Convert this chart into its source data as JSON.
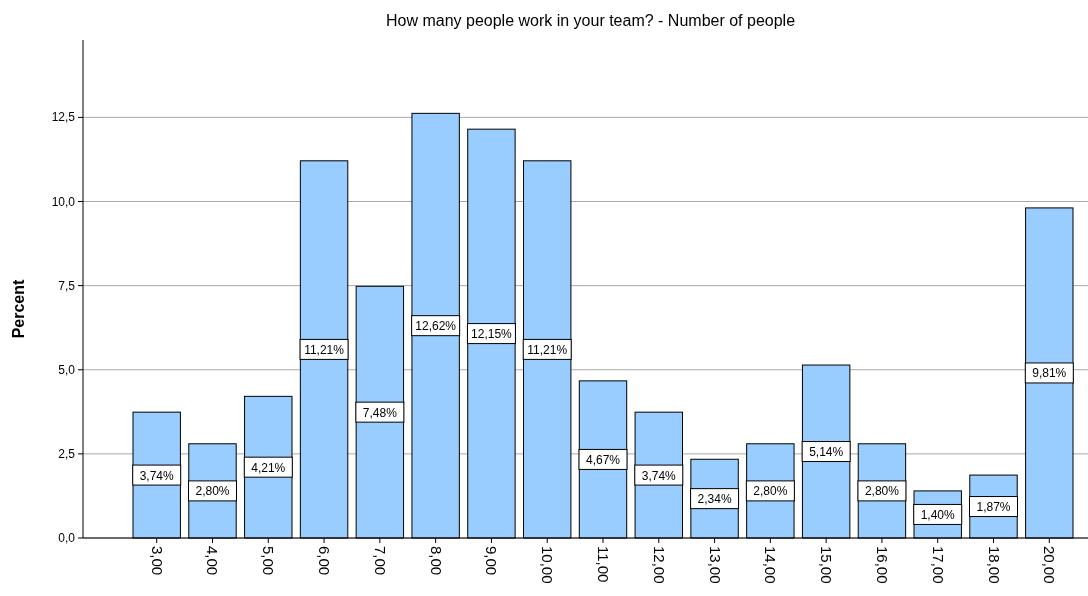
{
  "chart_data": {
    "type": "bar",
    "title": "How many people work in your team? - Number of people",
    "ylabel": "Percent",
    "categories": [
      "3,00",
      "4,00",
      "5,00",
      "6,00",
      "7,00",
      "8,00",
      "9,00",
      "10,00",
      "11,00",
      "12,00",
      "13,00",
      "14,00",
      "15,00",
      "16,00",
      "17,00",
      "18,00",
      "20,00"
    ],
    "values": [
      3.74,
      2.8,
      4.21,
      11.21,
      7.48,
      12.62,
      12.15,
      11.21,
      4.67,
      3.74,
      2.34,
      2.8,
      5.14,
      2.8,
      1.4,
      1.87,
      9.81
    ],
    "value_labels": [
      "3,74%",
      "2,80%",
      "4,21%",
      "11,21%",
      "7,48%",
      "12,62%",
      "12,15%",
      "11,21%",
      "4,67%",
      "3,74%",
      "2,34%",
      "2,80%",
      "5,14%",
      "2,80%",
      "1,40%",
      "1,87%",
      "9,81%"
    ],
    "color": "#99ccff",
    "ylim": [
      0,
      14.8
    ],
    "yticks": [
      {
        "value": 0,
        "label": "0,0"
      },
      {
        "value": 2.5,
        "label": "2,5"
      },
      {
        "value": 5,
        "label": "5,0"
      },
      {
        "value": 7.5,
        "label": "7,5"
      },
      {
        "value": 10,
        "label": "10,0"
      },
      {
        "value": 12.5,
        "label": "12,5"
      }
    ],
    "grid": "y"
  }
}
